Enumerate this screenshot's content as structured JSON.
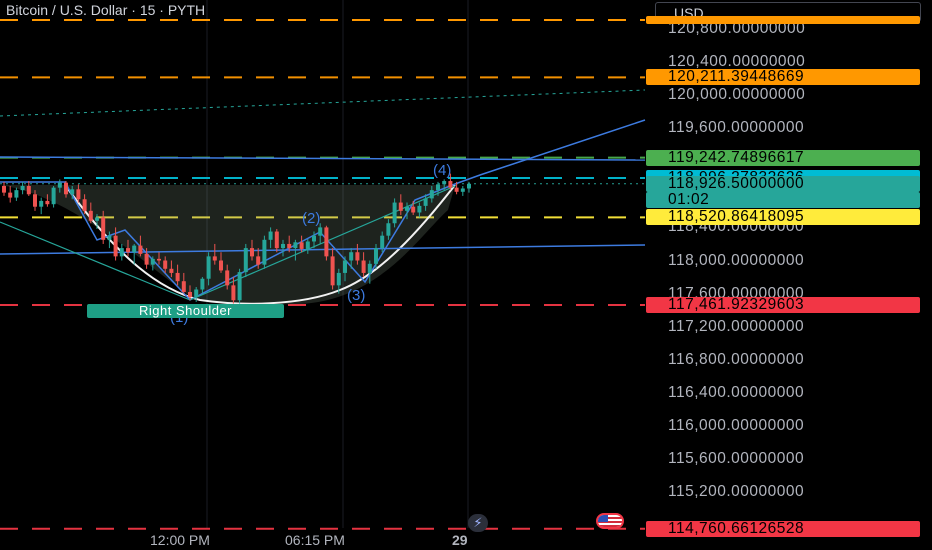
{
  "header": {
    "title": "Bitcoin / U.S. Dollar · 15 · PYTH",
    "currency": "USD"
  },
  "colors": {
    "bull": "#26a69a",
    "bear": "#ef5350",
    "pattern": "#3d7be0",
    "support_resistance": "#f23645"
  },
  "chart_data": {
    "type": "candlestick",
    "ylim": [
      114600,
      121050
    ],
    "y_ticks": [
      {
        "value": 120800,
        "label": "120,800.00000000"
      },
      {
        "value": 120400,
        "label": "120,400.00000000"
      },
      {
        "value": 120000,
        "label": "120,000.00000000"
      },
      {
        "value": 119600,
        "label": "119,600.00000000"
      },
      {
        "value": 118400,
        "label": "118,400.00000000"
      },
      {
        "value": 118000,
        "label": "118,000.00000000"
      },
      {
        "value": 117600,
        "label": "117,600.00000000"
      },
      {
        "value": 117200,
        "label": "117,200.00000000"
      },
      {
        "value": 116800,
        "label": "116,800.00000000"
      },
      {
        "value": 116400,
        "label": "116,400.00000000"
      },
      {
        "value": 116000,
        "label": "116,000.00000000"
      },
      {
        "value": 115600,
        "label": "115,600.00000000"
      },
      {
        "value": 115200,
        "label": "115,200.00000000"
      }
    ],
    "x_ticks": [
      "12:00 PM",
      "06:15 PM",
      "29"
    ],
    "price_badges": [
      {
        "value": 120211.39448669,
        "label": "120,211.39448669",
        "color": "#ff9800",
        "text_color": "#000000",
        "line": "dash"
      },
      {
        "value": 119242.74896617,
        "label": "119,242.74896617",
        "color": "#4caf50",
        "text_color": "#000000",
        "line": "dash"
      },
      {
        "value": 118996.27832626,
        "label": "118,996.27832626",
        "color": "#00bcd4",
        "text_color": "#000000",
        "line": "dash"
      },
      {
        "value": 118926.5,
        "label": "118,926.50000000",
        "countdown": "01:02",
        "color": "#26a69a",
        "text_color": "#000000",
        "line": "dot"
      },
      {
        "value": 118520.86418095,
        "label": "118,520.86418095",
        "color": "#ffeb3b",
        "text_color": "#000000",
        "line": "dash"
      },
      {
        "value": 117461.92329603,
        "label": "117,461.92329603",
        "color": "#f23645",
        "text_color": "#000000",
        "line": "dash"
      },
      {
        "value": 114760.66126528,
        "label": "114,760.66126528",
        "color": "#f23645",
        "text_color": "#000000",
        "line": "dash"
      }
    ],
    "pattern_points": [
      {
        "label": "(1)"
      },
      {
        "label": "(2)"
      },
      {
        "label": "(3)"
      },
      {
        "label": "(4)"
      }
    ],
    "annotations": [
      "Right Shoulder"
    ],
    "candles": [
      [
        118900,
        118950,
        118780,
        118820
      ],
      [
        118820,
        118900,
        118700,
        118760
      ],
      [
        118760,
        118880,
        118720,
        118850
      ],
      [
        118850,
        118950,
        118800,
        118900
      ],
      [
        118900,
        118960,
        118780,
        118800
      ],
      [
        118800,
        118850,
        118600,
        118650
      ],
      [
        118650,
        118760,
        118560,
        118720
      ],
      [
        118720,
        118800,
        118650,
        118680
      ],
      [
        118680,
        118900,
        118640,
        118880
      ],
      [
        118880,
        118980,
        118820,
        118940
      ],
      [
        118940,
        118960,
        118760,
        118800
      ],
      [
        118800,
        118900,
        118740,
        118860
      ],
      [
        118860,
        118920,
        118700,
        118740
      ],
      [
        118740,
        118800,
        118560,
        118600
      ],
      [
        118600,
        118700,
        118450,
        118480
      ],
      [
        118480,
        118560,
        118380,
        118520
      ],
      [
        118520,
        118600,
        118200,
        118250
      ],
      [
        118250,
        118350,
        118150,
        118300
      ],
      [
        118300,
        118400,
        118000,
        118050
      ],
      [
        118050,
        118200,
        118000,
        118150
      ],
      [
        118150,
        118250,
        118050,
        118100
      ],
      [
        118100,
        118200,
        117950,
        118180
      ],
      [
        118180,
        118300,
        118050,
        118080
      ],
      [
        118080,
        118150,
        117900,
        117950
      ],
      [
        117950,
        118050,
        117880,
        118020
      ],
      [
        118020,
        118100,
        117950,
        118000
      ],
      [
        118000,
        118050,
        117850,
        117900
      ],
      [
        117900,
        118000,
        117800,
        117850
      ],
      [
        117850,
        117950,
        117700,
        117750
      ],
      [
        117750,
        117850,
        117600,
        117620
      ],
      [
        117620,
        117700,
        117520,
        117560
      ],
      [
        117560,
        117680,
        117500,
        117650
      ],
      [
        117650,
        117800,
        117600,
        117780
      ],
      [
        117780,
        118100,
        117700,
        118050
      ],
      [
        118050,
        118200,
        117950,
        118000
      ],
      [
        118000,
        118100,
        117850,
        117880
      ],
      [
        117880,
        117950,
        117650,
        117700
      ],
      [
        117700,
        117800,
        117480,
        117520
      ],
      [
        117520,
        117900,
        117480,
        117860
      ],
      [
        117860,
        118200,
        117800,
        118150
      ],
      [
        118150,
        118250,
        118000,
        118050
      ],
      [
        118050,
        118150,
        117900,
        117950
      ],
      [
        117950,
        118300,
        117900,
        118250
      ],
      [
        118250,
        118400,
        118150,
        118350
      ],
      [
        118350,
        118380,
        118100,
        118150
      ],
      [
        118150,
        118250,
        118050,
        118200
      ],
      [
        118200,
        118300,
        118100,
        118150
      ],
      [
        118150,
        118250,
        118000,
        118220
      ],
      [
        118220,
        118300,
        118100,
        118140
      ],
      [
        118140,
        118260,
        118080,
        118230
      ],
      [
        118230,
        118350,
        118150,
        118300
      ],
      [
        118300,
        118450,
        118200,
        118400
      ],
      [
        118400,
        118420,
        118000,
        118050
      ],
      [
        118050,
        118150,
        117650,
        117700
      ],
      [
        117700,
        117900,
        117600,
        117850
      ],
      [
        117850,
        118050,
        117750,
        118000
      ],
      [
        118000,
        118150,
        117900,
        118100
      ],
      [
        118100,
        118200,
        117950,
        118000
      ],
      [
        118000,
        118100,
        117800,
        117850
      ],
      [
        117850,
        118000,
        117720,
        117960
      ],
      [
        117960,
        118200,
        117900,
        118150
      ],
      [
        118150,
        118350,
        118100,
        118300
      ],
      [
        118300,
        118500,
        118250,
        118450
      ],
      [
        118450,
        118750,
        118400,
        118700
      ],
      [
        118700,
        118800,
        118550,
        118600
      ],
      [
        118600,
        118700,
        118500,
        118650
      ],
      [
        118650,
        118720,
        118550,
        118580
      ],
      [
        118580,
        118700,
        118520,
        118660
      ],
      [
        118660,
        118800,
        118600,
        118750
      ],
      [
        118750,
        118900,
        118700,
        118850
      ],
      [
        118850,
        118950,
        118780,
        118920
      ],
      [
        118920,
        118980,
        118850,
        118960
      ],
      [
        118960,
        119050,
        118850,
        118880
      ],
      [
        118880,
        118950,
        118800,
        118830
      ],
      [
        118830,
        118900,
        118780,
        118870
      ],
      [
        118870,
        118950,
        118820,
        118926.5
      ]
    ]
  }
}
